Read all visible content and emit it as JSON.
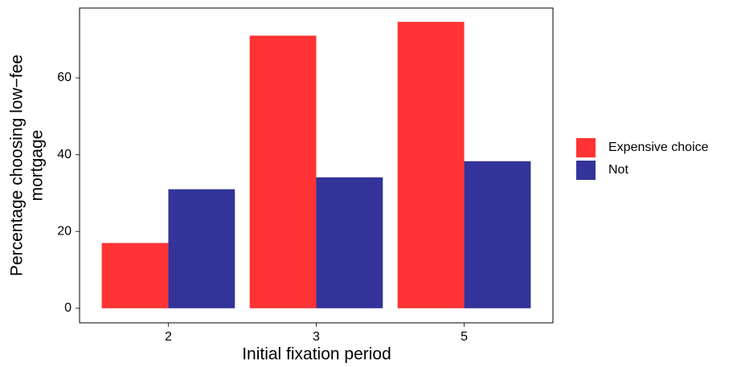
{
  "chart_data": {
    "type": "bar",
    "x_label": "Initial fixation period",
    "y_label": [
      "Percentage choosing low−fee",
      "mortgage"
    ],
    "categories": [
      "2",
      "3",
      "5"
    ],
    "series": [
      {
        "name": "Expensive choice",
        "color": "#ff3333",
        "values": [
          17,
          71,
          74.6
        ]
      },
      {
        "name": "Not",
        "color": "#333399",
        "values": [
          31,
          34.1,
          38.3
        ]
      }
    ],
    "ylim": [
      -3.8,
      78.2
    ],
    "yticks": [
      0,
      20,
      40,
      60
    ],
    "grid": false,
    "legend": "right"
  }
}
